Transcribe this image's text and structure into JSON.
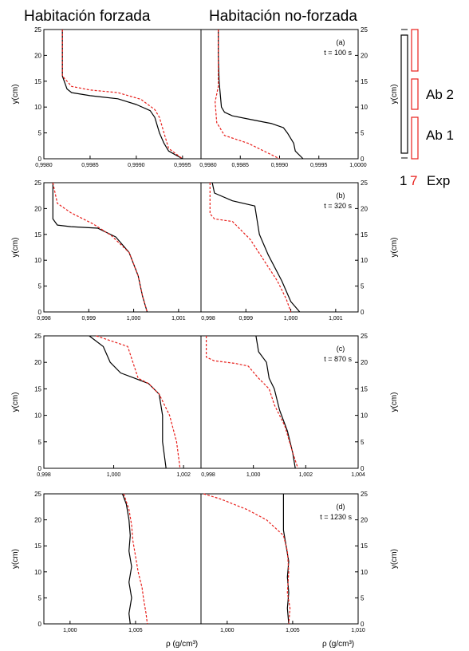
{
  "titles": {
    "left": "Habitación forzada",
    "right": "Habitación no-forzada"
  },
  "y_label": "y(cm)",
  "x_label": "ρ (g/cm³)",
  "legend": {
    "ab2": "Ab 2",
    "ab1": "Ab 1",
    "one": "1",
    "seven": "7",
    "exp": "Exp"
  },
  "colors": {
    "solid": "#000000",
    "dashed": "#e8201c"
  },
  "chart_data": [
    {
      "type": "line",
      "id": "a",
      "annotation": "(a)",
      "time_label": "t = 100 s",
      "ylim": [
        0,
        25
      ],
      "yticks": [
        0,
        5,
        10,
        15,
        20,
        25
      ],
      "left": {
        "xlim": [
          0.998,
          0.9997
        ],
        "xticks": [
          0.998,
          0.9985,
          0.999,
          0.9995
        ],
        "xticklabels": [
          "0,9980",
          "0,9985",
          "0,9990",
          "0,9995"
        ],
        "series": [
          {
            "style": "solid",
            "x": [
              0.9982,
              0.9982,
              0.9982,
              0.99825,
              0.9983,
              0.9985,
              0.9988,
              0.999,
              0.99915,
              0.9992,
              0.99925,
              0.9993,
              0.99935,
              0.9995
            ],
            "y": [
              25,
              20,
              16,
              13.5,
              12.8,
              12.2,
              11.6,
              10.5,
              9.3,
              8,
              5,
              3,
              1.5,
              0
            ]
          },
          {
            "style": "dashed",
            "x": [
              0.9982,
              0.9982,
              0.9982,
              0.9983,
              0.9985,
              0.9988,
              0.99905,
              0.9992,
              0.99925,
              0.9993,
              0.99935,
              0.9995
            ],
            "y": [
              25,
              20,
              16,
              14,
              13.3,
              12.8,
              11.5,
              9.5,
              8,
              5,
              2,
              0
            ]
          }
        ]
      },
      "right": {
        "xlim": [
          0.998,
          1.0
        ],
        "xticks": [
          0.998,
          0.9985,
          0.999,
          0.9995,
          1.0
        ],
        "xticklabels": [
          "0,9980",
          "0,9985",
          "0,9990",
          "0,9995",
          "1,0000"
        ],
        "series": [
          {
            "style": "solid",
            "x": [
              0.99822,
              0.99822,
              0.99823,
              0.99826,
              0.9983,
              0.9984,
              0.9986,
              0.9988,
              0.9989,
              0.99905,
              0.9991,
              0.99918,
              0.9992,
              0.9993
            ],
            "y": [
              25,
              20,
              15,
              10,
              9,
              8.3,
              7.7,
              7.1,
              6.8,
              6,
              5,
              3,
              1.5,
              0
            ]
          },
          {
            "style": "dashed",
            "x": [
              0.99822,
              0.99822,
              0.99822,
              0.99818,
              0.9982,
              0.9983,
              0.9986,
              0.9988,
              0.999
            ],
            "y": [
              25,
              20,
              14,
              11,
              7,
              4.5,
              3,
              1.5,
              0
            ]
          }
        ]
      }
    },
    {
      "type": "line",
      "id": "b",
      "annotation": "(b)",
      "time_label": "t = 320 s",
      "ylim": [
        0,
        25
      ],
      "yticks": [
        0,
        5,
        10,
        15,
        20,
        25
      ],
      "left": {
        "xlim": [
          0.998,
          1.0015
        ],
        "xticks": [
          0.998,
          0.999,
          1.0,
          1.001
        ],
        "xticklabels": [
          "0,998",
          "0,999",
          "1,000",
          "1,001"
        ],
        "series": [
          {
            "style": "solid",
            "x": [
              0.9982,
              0.9982,
              0.9982,
              0.9983,
              0.9986,
              0.9992,
              0.9996,
              0.9999,
              1.0001,
              1.0002,
              1.0003
            ],
            "y": [
              25,
              20,
              18,
              16.8,
              16.5,
              16.2,
              14.5,
              11.5,
              7,
              3,
              0
            ]
          },
          {
            "style": "dashed",
            "x": [
              0.9982,
              0.9983,
              0.9986,
              0.9991,
              0.9995,
              0.9999,
              1.0001,
              1.0002,
              1.0003
            ],
            "y": [
              25,
              21,
              19.2,
              17,
              14.8,
              11.5,
              7,
              3,
              0
            ]
          }
        ]
      },
      "right": {
        "xlim": [
          0.998,
          1.0015
        ],
        "xticks": [
          0.998,
          0.999,
          1.0,
          1.001
        ],
        "xticklabels": [
          "0,998",
          "0,999",
          "1,000",
          "1,001"
        ],
        "series": [
          {
            "style": "solid",
            "x": [
              0.99825,
              0.9983,
              0.9987,
              0.9992,
              0.9993,
              0.9995,
              0.9998,
              1.0,
              1.0002
            ],
            "y": [
              25,
              23,
              21.5,
              20.5,
              15,
              11,
              6,
              2,
              0
            ]
          },
          {
            "style": "dashed",
            "x": [
              0.9982,
              0.9982,
              0.9983,
              0.9987,
              0.9991,
              0.9994,
              0.9997,
              0.9999,
              1.0
            ],
            "y": [
              25,
              19,
              18,
              17.5,
              14,
              10,
              6,
              2.5,
              0
            ]
          }
        ]
      }
    },
    {
      "type": "line",
      "id": "c",
      "annotation": "(c)",
      "time_label": "t = 870 s",
      "ylim": [
        0,
        25
      ],
      "yticks": [
        0,
        5,
        10,
        15,
        20,
        25
      ],
      "left": {
        "xlim": [
          0.998,
          1.0025
        ],
        "xticks": [
          0.998,
          1.0,
          1.002
        ],
        "xticklabels": [
          "0,998",
          "1,000",
          "1,002"
        ],
        "series": [
          {
            "style": "solid",
            "x": [
              0.9993,
              0.9997,
              0.9999,
              1.0002,
              1.0006,
              1.001,
              1.0013,
              1.0014,
              1.0014,
              1.0015
            ],
            "y": [
              25,
              23,
              20,
              18,
              17,
              16,
              14,
              10,
              5,
              0
            ]
          },
          {
            "style": "dashed",
            "x": [
              0.9995,
              1.0004,
              1.0007,
              1.001,
              1.0013,
              1.0016,
              1.0018,
              1.0019
            ],
            "y": [
              25,
              23,
              17,
              16,
              14,
              10,
              5,
              0
            ]
          }
        ]
      },
      "right": {
        "xlim": [
          0.998,
          1.004
        ],
        "xticks": [
          0.998,
          1.0,
          1.002,
          1.004
        ],
        "xticklabels": [
          "0,998",
          "1,000",
          "1,002",
          "1,004"
        ],
        "series": [
          {
            "style": "solid",
            "x": [
              1.0001,
              1.0002,
              1.0005,
              1.0006,
              1.0008,
              1.001,
              1.0013,
              1.0015,
              1.0016
            ],
            "y": [
              25,
              22,
              20,
              17,
              15,
              11,
              7,
              3,
              0
            ]
          },
          {
            "style": "dashed",
            "x": [
              0.9982,
              0.9982,
              0.9985,
              0.9993,
              0.9998,
              1.0002,
              1.0006,
              1.0008,
              1.0012,
              1.0015,
              1.0017
            ],
            "y": [
              25,
              21,
              20.3,
              19.8,
              19.3,
              17,
              15,
              12,
              8,
              3,
              0
            ]
          }
        ]
      }
    },
    {
      "type": "line",
      "id": "d",
      "annotation": "(d)",
      "time_label": "t = 1230 s",
      "ylim": [
        0,
        25
      ],
      "yticks": [
        0,
        5,
        10,
        15,
        20,
        25
      ],
      "left": {
        "xlim": [
          0.998,
          1.01
        ],
        "xticks": [
          1.0,
          1.005
        ],
        "xticklabels": [
          "1,000",
          "1,005"
        ],
        "series": [
          {
            "style": "solid",
            "x": [
              1.004,
              1.0043,
              1.0045,
              1.0046,
              1.0045,
              1.0047,
              1.0045,
              1.0047,
              1.0045,
              1.0046
            ],
            "y": [
              25,
              23,
              20,
              17,
              14,
              11,
              8,
              5,
              2,
              0
            ]
          },
          {
            "style": "dashed",
            "x": [
              1.0041,
              1.0045,
              1.0047,
              1.0048,
              1.005,
              1.0052,
              1.0055,
              1.0056,
              1.0058,
              1.0059
            ],
            "y": [
              25,
              22,
              19,
              16,
              13,
              10,
              7,
              5,
              2,
              0
            ]
          }
        ]
      },
      "right": {
        "xlim": [
          0.998,
          1.01
        ],
        "xticks": [
          1.0,
          1.005,
          1.01
        ],
        "xticklabels": [
          "1,000",
          "1,005",
          "1,010"
        ],
        "series": [
          {
            "style": "solid",
            "x": [
              1.0043,
              1.0043,
              1.0043,
              1.0045,
              1.0047,
              1.0046,
              1.0047,
              1.0046,
              1.0047
            ],
            "y": [
              25,
              22,
              18,
              15,
              12,
              9,
              6,
              3,
              0
            ]
          },
          {
            "style": "dashed",
            "x": [
              0.9982,
              0.9995,
              1.0015,
              1.003,
              1.0043,
              1.0046,
              1.0047,
              1.0046,
              1.0048,
              1.0047
            ],
            "y": [
              25,
              24,
              22,
              20,
              17,
              14,
              10,
              6,
              3,
              0
            ]
          }
        ]
      }
    }
  ]
}
